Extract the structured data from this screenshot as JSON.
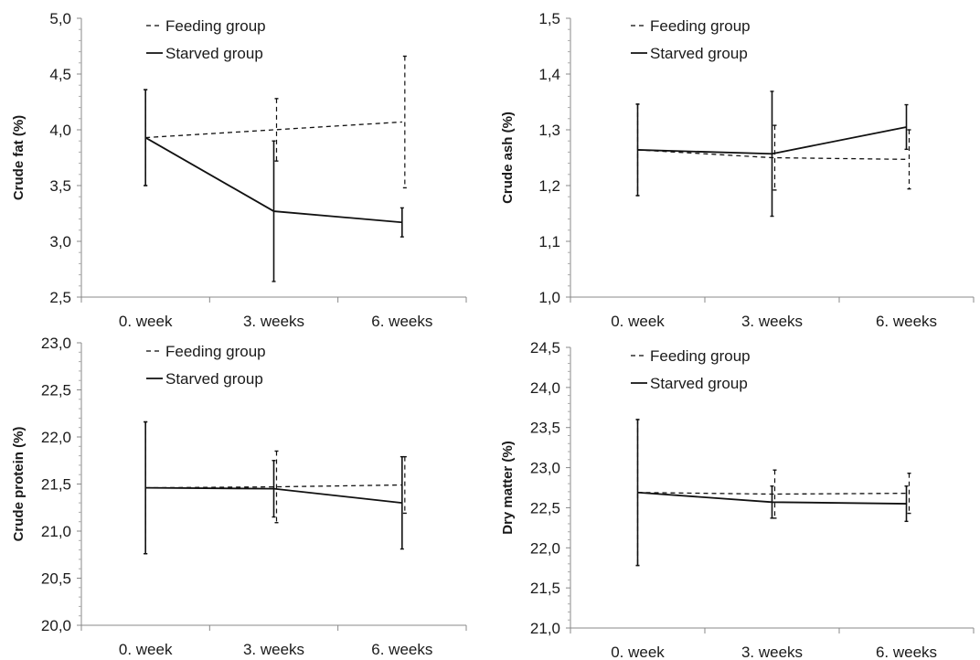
{
  "chart_data": [
    {
      "type": "line",
      "ylabel": "Crude fat (%)",
      "categories": [
        "0. week",
        "3. weeks",
        "6. weeks"
      ],
      "yticks": [
        "5,0",
        "4,5",
        "4,0",
        "3,5",
        "3,0",
        "2,5"
      ],
      "ylim": [
        2.5,
        5.0
      ],
      "series": [
        {
          "name": "Feeding group",
          "style": "dashed",
          "values": [
            3.93,
            4.0,
            4.07
          ],
          "err": [
            0.43,
            0.28,
            0.59
          ]
        },
        {
          "name": "Starved group",
          "style": "solid",
          "values": [
            3.93,
            3.27,
            3.17
          ],
          "err": [
            0.43,
            0.63,
            0.13
          ]
        }
      ]
    },
    {
      "type": "line",
      "ylabel": "Crude ash (%)",
      "categories": [
        "0. week",
        "3. weeks",
        "6. weeks"
      ],
      "yticks": [
        "1,5",
        "1,4",
        "1,3",
        "1,2",
        "1,1",
        "1,0"
      ],
      "ylim": [
        1.0,
        1.5
      ],
      "series": [
        {
          "name": "Feeding group",
          "style": "dashed",
          "values": [
            1.264,
            1.25,
            1.247
          ],
          "err": [
            0.082,
            0.058,
            0.053
          ]
        },
        {
          "name": "Starved group",
          "style": "solid",
          "values": [
            1.264,
            1.257,
            1.305
          ],
          "err": [
            0.082,
            0.112,
            0.04
          ]
        }
      ]
    },
    {
      "type": "line",
      "ylabel": "Crude protein (%)",
      "categories": [
        "0. week",
        "3. weeks",
        "6. weeks"
      ],
      "yticks": [
        "23,0",
        "22,5",
        "22,0",
        "21,5",
        "21,0",
        "20,5",
        "20,0"
      ],
      "ylim": [
        20.0,
        23.0
      ],
      "series": [
        {
          "name": "Feeding group",
          "style": "dashed",
          "values": [
            21.46,
            21.47,
            21.49
          ],
          "err": [
            0.7,
            0.38,
            0.3
          ]
        },
        {
          "name": "Starved group",
          "style": "solid",
          "values": [
            21.46,
            21.45,
            21.3
          ],
          "err": [
            0.7,
            0.3,
            0.49
          ]
        }
      ]
    },
    {
      "type": "line",
      "ylabel": "Dry matter (%)",
      "categories": [
        "0. week",
        "3. weeks",
        "6. weeks"
      ],
      "yticks": [
        "24,5",
        "24,0",
        "23,5",
        "23,0",
        "22,5",
        "22,0",
        "21,5",
        "21,0"
      ],
      "ylim": [
        21.0,
        24.5
      ],
      "series": [
        {
          "name": "Feeding group",
          "style": "dashed",
          "values": [
            22.69,
            22.67,
            22.68
          ],
          "err": [
            0.91,
            0.3,
            0.25
          ]
        },
        {
          "name": "Starved group",
          "style": "solid",
          "values": [
            22.69,
            22.57,
            22.55
          ],
          "err": [
            0.91,
            0.2,
            0.22
          ]
        }
      ]
    }
  ]
}
